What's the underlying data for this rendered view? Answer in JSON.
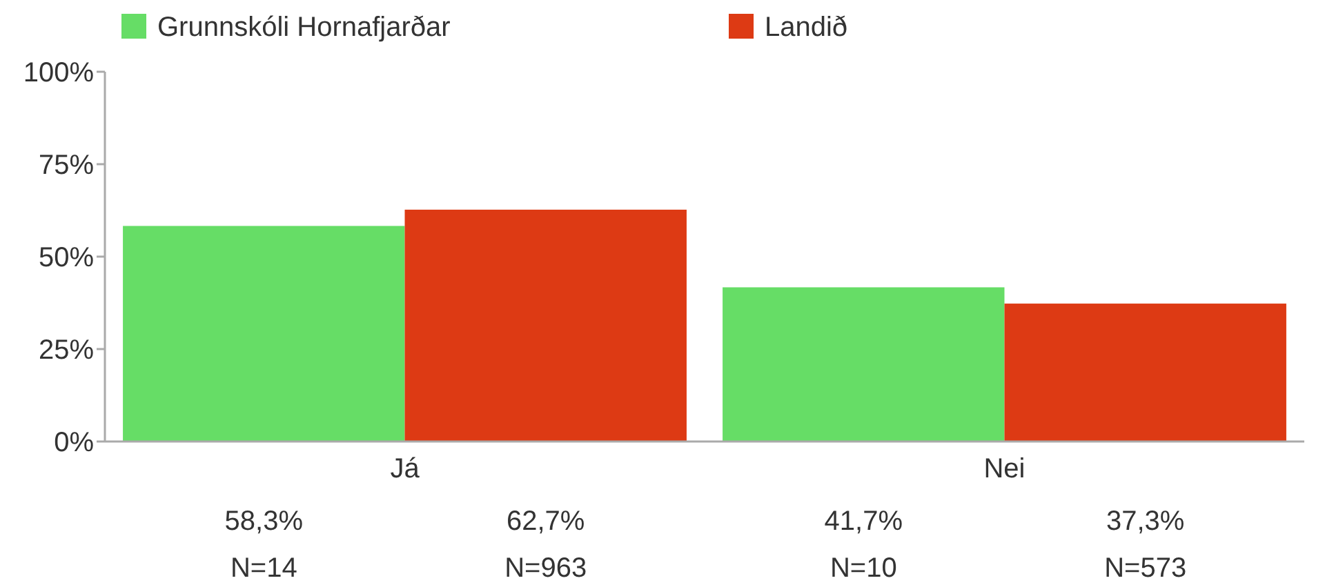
{
  "chart_data": {
    "type": "bar",
    "categories": [
      "Já",
      "Nei"
    ],
    "series": [
      {
        "name": "Grunnskóli Hornafjarðar",
        "color": "#66dd66",
        "values": [
          58.3,
          41.7
        ],
        "value_labels": [
          "58,3%",
          "41,7%"
        ]
      },
      {
        "name": "Landið",
        "color": "#dd3a14",
        "values": [
          62.7,
          37.3
        ],
        "value_labels": [
          "62,7%",
          "37,3%"
        ]
      }
    ],
    "ylim": [
      0,
      100
    ],
    "yticks": [
      {
        "value": 0,
        "label": "0%"
      },
      {
        "value": 25,
        "label": "25%"
      },
      {
        "value": 50,
        "label": "50%"
      },
      {
        "value": 75,
        "label": "75%"
      },
      {
        "value": 100,
        "label": "100%"
      }
    ],
    "annotations": [
      "N=14",
      "N=963",
      "N=10",
      "N=573"
    ],
    "legend": "top left",
    "grid": false
  }
}
